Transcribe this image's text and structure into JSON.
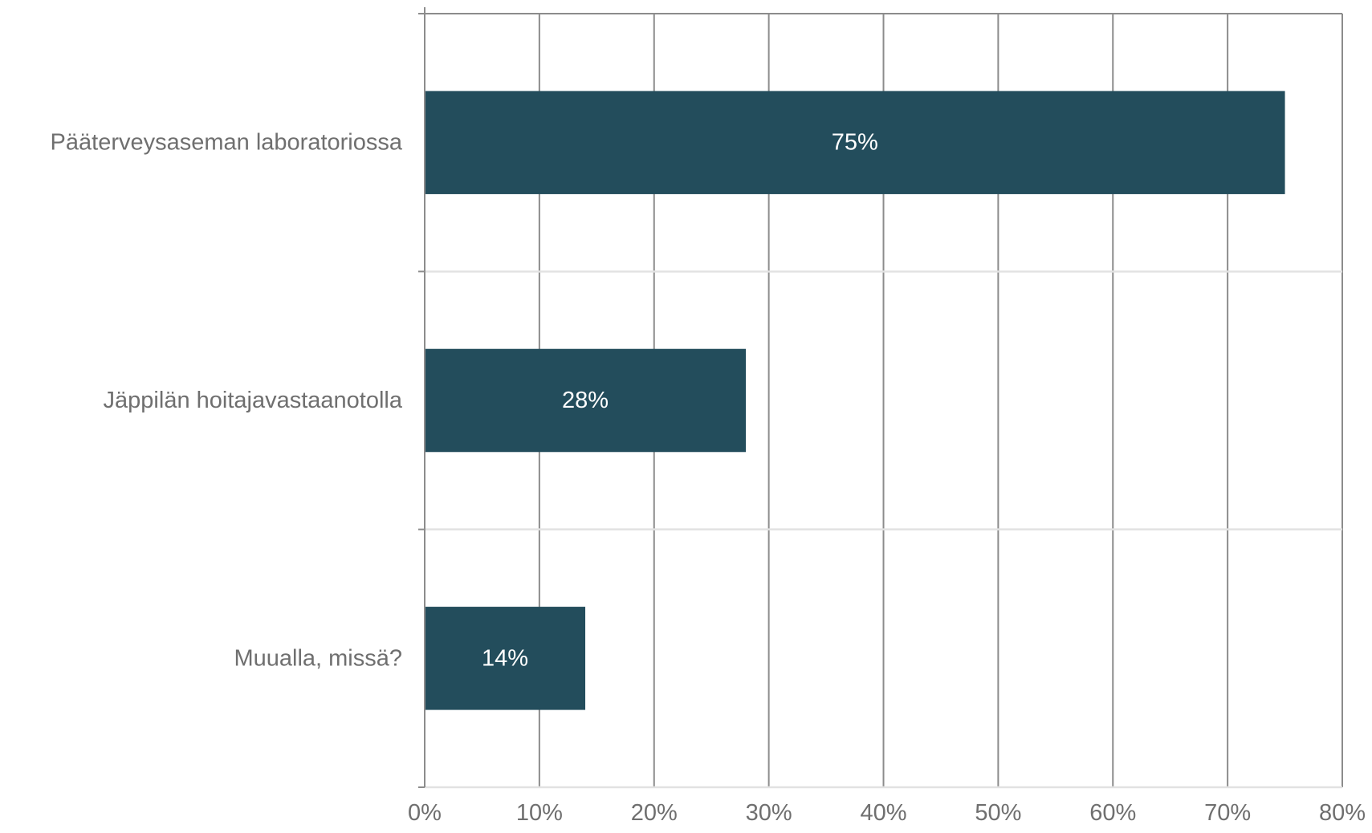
{
  "chart_data": {
    "type": "bar",
    "orientation": "horizontal",
    "categories": [
      "Pääterveysaseman laboratoriossa",
      "Jäppilän hoitajavastaanotolla",
      "Muualla, missä?"
    ],
    "values": [
      75,
      28,
      14
    ],
    "data_labels": [
      "75%",
      "28%",
      "14%"
    ],
    "x_ticks": [
      0,
      10,
      20,
      30,
      40,
      50,
      60,
      70,
      80
    ],
    "x_tick_labels": [
      "0%",
      "10%",
      "20%",
      "30%",
      "40%",
      "50%",
      "60%",
      "70%",
      "80%"
    ],
    "xlim": [
      0,
      80
    ],
    "title": "",
    "xlabel": "",
    "ylabel": "",
    "grid": true,
    "legend": "none",
    "colors": {
      "bar": "#234d5c",
      "grid": "#8c8c8c",
      "category_separator": "#e2e2e2",
      "label_text": "#6f6f6f",
      "data_label_text": "#ffffff"
    }
  }
}
